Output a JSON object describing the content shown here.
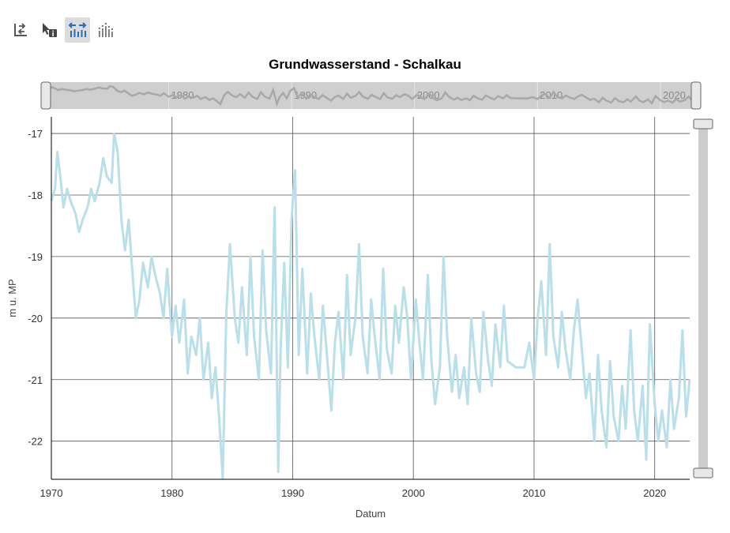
{
  "toolbar": {
    "buttons": [
      {
        "icon": "reset-axes-icon",
        "active": false
      },
      {
        "icon": "inspect-point-icon",
        "active": false
      },
      {
        "icon": "zoom-horizontal-icon",
        "active": true
      },
      {
        "icon": "show-points-icon",
        "active": false
      }
    ]
  },
  "colors": {
    "series": "#b9dfeb",
    "navigator_line": "#a8a8a8",
    "navigator_bg": "#cfcfcf",
    "grid": "#555555",
    "handle": "#cccccc",
    "active_button": "#dcdcdc",
    "accent": "#2a6db5"
  },
  "chart_data": {
    "type": "line",
    "title": "Grundwasserstand - Schalkau",
    "xlabel": "Datum",
    "ylabel": "m u. MP",
    "xlim": [
      1970.0,
      2022.9
    ],
    "ylim": [
      -22.62,
      -16.73
    ],
    "x_ticks": [
      1970,
      1980,
      1990,
      2000,
      2010,
      2020
    ],
    "y_ticks": [
      -17,
      -18,
      -19,
      -20,
      -21,
      -22
    ],
    "navigator_ticks": [
      1980,
      1990,
      2000,
      2010,
      2020
    ],
    "grid": true,
    "legend": "none",
    "series": [
      {
        "x": [
          1970.0,
          1970.3,
          1970.5,
          1970.8,
          1971.0,
          1971.3,
          1971.6,
          1972.0,
          1972.3,
          1972.6,
          1973.0,
          1973.3,
          1973.6,
          1974.0,
          1974.3,
          1974.6,
          1975.0,
          1975.2,
          1975.5,
          1975.8,
          1976.1,
          1976.4,
          1976.7,
          1977.0,
          1977.3,
          1977.6,
          1978.0,
          1978.3,
          1978.6,
          1979.0,
          1979.3,
          1979.6,
          1980.0,
          1980.3,
          1980.6,
          1981.0,
          1981.3,
          1981.6,
          1982.0,
          1982.3,
          1982.6,
          1983.0,
          1983.3,
          1983.6,
          1983.9,
          1984.2,
          1984.5,
          1984.8,
          1985.2,
          1985.5,
          1985.8,
          1986.2,
          1986.5,
          1986.8,
          1987.2,
          1987.5,
          1987.8,
          1988.2,
          1988.5,
          1988.8,
          1989.0,
          1989.3,
          1989.6,
          1989.9,
          1990.2,
          1990.5,
          1990.8,
          1991.2,
          1991.5,
          1991.8,
          1992.2,
          1992.5,
          1992.8,
          1993.2,
          1993.5,
          1993.8,
          1994.2,
          1994.5,
          1994.8,
          1995.2,
          1995.5,
          1995.8,
          1996.2,
          1996.5,
          1996.8,
          1997.2,
          1997.5,
          1997.8,
          1998.2,
          1998.5,
          1998.8,
          1999.2,
          1999.5,
          1999.8,
          2000.2,
          2000.5,
          2000.8,
          2001.2,
          2001.5,
          2001.8,
          2002.2,
          2002.5,
          2002.8,
          2003.2,
          2003.5,
          2003.8,
          2004.2,
          2004.5,
          2004.8,
          2005.2,
          2005.5,
          2005.8,
          2006.2,
          2006.5,
          2006.8,
          2007.2,
          2007.5,
          2007.8,
          2008.5,
          2009.2,
          2009.6,
          2010.0,
          2010.3,
          2010.6,
          2011.0,
          2011.3,
          2011.6,
          2012.0,
          2012.3,
          2012.6,
          2013.0,
          2013.3,
          2013.6,
          2014.0,
          2014.3,
          2014.6,
          2015.0,
          2015.3,
          2015.6,
          2016.0,
          2016.3,
          2016.6,
          2017.0,
          2017.3,
          2017.6,
          2018.0,
          2018.3,
          2018.6,
          2019.0,
          2019.3,
          2019.6,
          2020.0,
          2020.3,
          2020.6,
          2021.0,
          2021.3,
          2021.6,
          2022.0,
          2022.3,
          2022.6,
          2022.9
        ],
        "y": [
          -18.1,
          -17.9,
          -17.3,
          -17.8,
          -18.2,
          -17.9,
          -18.1,
          -18.3,
          -18.6,
          -18.4,
          -18.2,
          -17.9,
          -18.1,
          -17.8,
          -17.4,
          -17.7,
          -17.8,
          -17.0,
          -17.3,
          -18.4,
          -18.9,
          -18.4,
          -19.2,
          -20.0,
          -19.7,
          -19.1,
          -19.5,
          -19.0,
          -19.3,
          -19.6,
          -20.0,
          -19.2,
          -20.3,
          -19.8,
          -20.4,
          -19.7,
          -20.9,
          -20.3,
          -20.6,
          -20.0,
          -21.0,
          -20.4,
          -21.3,
          -20.8,
          -21.6,
          -22.6,
          -19.9,
          -18.8,
          -20.0,
          -20.4,
          -19.5,
          -20.6,
          -19.0,
          -20.3,
          -21.0,
          -18.9,
          -20.2,
          -20.9,
          -18.2,
          -22.5,
          -20.5,
          -19.1,
          -20.8,
          -18.4,
          -17.6,
          -20.6,
          -19.2,
          -20.9,
          -19.6,
          -20.3,
          -21.0,
          -19.8,
          -20.5,
          -21.5,
          -20.4,
          -19.9,
          -21.0,
          -19.3,
          -20.6,
          -20.0,
          -18.8,
          -20.3,
          -20.9,
          -19.7,
          -20.3,
          -21.0,
          -19.2,
          -20.5,
          -20.9,
          -19.8,
          -20.4,
          -19.5,
          -20.0,
          -21.0,
          -19.7,
          -20.4,
          -21.0,
          -19.3,
          -20.7,
          -21.4,
          -20.8,
          -19.0,
          -20.3,
          -21.2,
          -20.6,
          -21.3,
          -20.8,
          -21.4,
          -20.0,
          -20.9,
          -21.2,
          -19.9,
          -20.7,
          -21.1,
          -20.1,
          -20.8,
          -19.8,
          -20.7,
          -20.8,
          -20.8,
          -20.4,
          -21.0,
          -20.0,
          -19.4,
          -20.6,
          -18.8,
          -20.3,
          -20.8,
          -19.9,
          -20.5,
          -21.0,
          -20.2,
          -19.7,
          -20.6,
          -21.3,
          -20.9,
          -22.0,
          -20.6,
          -21.5,
          -22.1,
          -20.7,
          -21.6,
          -22.0,
          -21.1,
          -21.8,
          -20.2,
          -21.5,
          -22.0,
          -21.1,
          -22.3,
          -20.1,
          -21.4,
          -22.0,
          -21.5,
          -22.1,
          -21.0,
          -21.8,
          -21.3,
          -20.2,
          -21.6,
          -21.0
        ]
      }
    ]
  }
}
